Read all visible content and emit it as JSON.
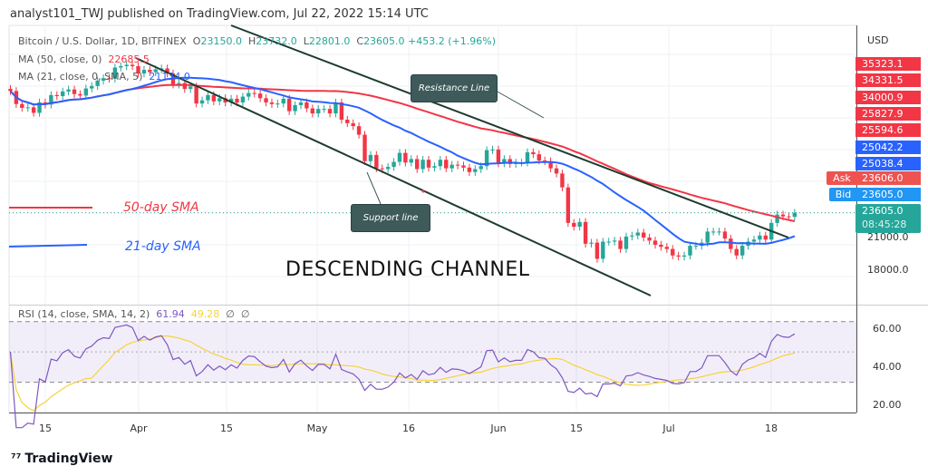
{
  "header": {
    "published": "analyst101_TWJ published on TradingView.com, Jul 22, 2022 15:14 UTC"
  },
  "legend": {
    "symbol": "Bitcoin / U.S. Dollar, 1D, BITFINEX",
    "o_label": "O",
    "o": "23150.0",
    "h_label": "H",
    "h": "23732.0",
    "l_label": "L",
    "l": "22801.0",
    "c_label": "C",
    "c": "23605.0",
    "change": "+453.2 (+1.96%)",
    "ma50": "MA (50, close, 0)",
    "ma50_value": "22685.5",
    "ma21": "MA (21, close, 0, SMA, 5)",
    "ma21_value": "21134.0",
    "rsi": "RSI (14, close, SMA, 14, 2)",
    "rsi_value": "61.94",
    "rsi_ma_value": "49.28",
    "rsi_extra1": "∅",
    "rsi_extra2": "∅"
  },
  "price_axis": {
    "currency": "USD",
    "labels": [
      {
        "text": "35323.1",
        "color": "#f23645"
      },
      {
        "text": "34331.5",
        "color": "#f23645"
      },
      {
        "text": "34000.9",
        "color": "#f23645"
      },
      {
        "text": "25827.9",
        "color": "#f23645"
      },
      {
        "text": "25594.6",
        "color": "#f23645"
      },
      {
        "text": "25042.2",
        "color": "#2962ff"
      },
      {
        "text": "25038.4",
        "color": "#2962ff"
      }
    ],
    "ask_label": "Ask",
    "ask": "23606.0",
    "bid_label": "Bid",
    "bid": "23605.0",
    "last": "23605.0",
    "countdown": "08:45:28",
    "ticks": [
      "21000.0",
      "18000.0"
    ]
  },
  "rsi_axis": {
    "ticks": [
      "60.00",
      "40.00",
      "20.00"
    ]
  },
  "annotations": {
    "sma50": "50-day SMA",
    "sma21": "21-day SMA",
    "title": "DESCENDING CHANNEL",
    "resistance": "Resistance Line",
    "support": "Support line"
  },
  "footer": {
    "logo": "TradingView"
  },
  "colors": {
    "up": "#26a69a",
    "down": "#f23645",
    "ma50": "#f23645",
    "ma21": "#2962ff",
    "rsi": "#7e57c2",
    "rsi_ma": "#f5d33a",
    "trendline": "#1e3b2f"
  },
  "chart_data": {
    "type": "candlestick",
    "scale": "log",
    "x_ticks": [
      "15",
      "Apr",
      "15",
      "May",
      "16",
      "Jun",
      "15",
      "Jul",
      "18"
    ],
    "y_ticks": [
      21000,
      18000
    ],
    "closes": [
      41900,
      39400,
      38700,
      38800,
      37800,
      39700,
      39300,
      41100,
      40900,
      41800,
      42200,
      41300,
      41000,
      42400,
      42900,
      44000,
      44500,
      44400,
      46800,
      47100,
      47400,
      47100,
      45500,
      46300,
      45800,
      46400,
      46600,
      45500,
      43200,
      43500,
      42300,
      42800,
      39500,
      40100,
      41100,
      39900,
      40500,
      39700,
      40400,
      39700,
      40800,
      41500,
      41400,
      40500,
      39700,
      39400,
      39500,
      40400,
      38100,
      39200,
      39700,
      38600,
      37700,
      38500,
      38500,
      37700,
      39700,
      36600,
      36000,
      35500,
      34100,
      30100,
      31000,
      29100,
      29000,
      29300,
      30000,
      31300,
      29900,
      30400,
      29000,
      30300,
      29200,
      29400,
      30300,
      29100,
      29600,
      29500,
      29200,
      28600,
      29000,
      29400,
      31700,
      31800,
      29800,
      30400,
      29700,
      29900,
      29900,
      31400,
      31100,
      30200,
      30100,
      29100,
      28400,
      26600,
      22500,
      22100,
      22600,
      20400,
      20500,
      19000,
      20600,
      20600,
      20700,
      19900,
      21100,
      21200,
      21500,
      21000,
      20700,
      20300,
      20100,
      19900,
      19300,
      19200,
      19300,
      20200,
      20200,
      20500,
      21600,
      21600,
      21600,
      20900,
      19900,
      19300,
      20200,
      20600,
      20800,
      21200,
      20800,
      22500,
      23400,
      23200,
      23150,
      23605
    ],
    "rsi_ylim": [
      10,
      80
    ],
    "rsi_bands": [
      70,
      30
    ]
  }
}
